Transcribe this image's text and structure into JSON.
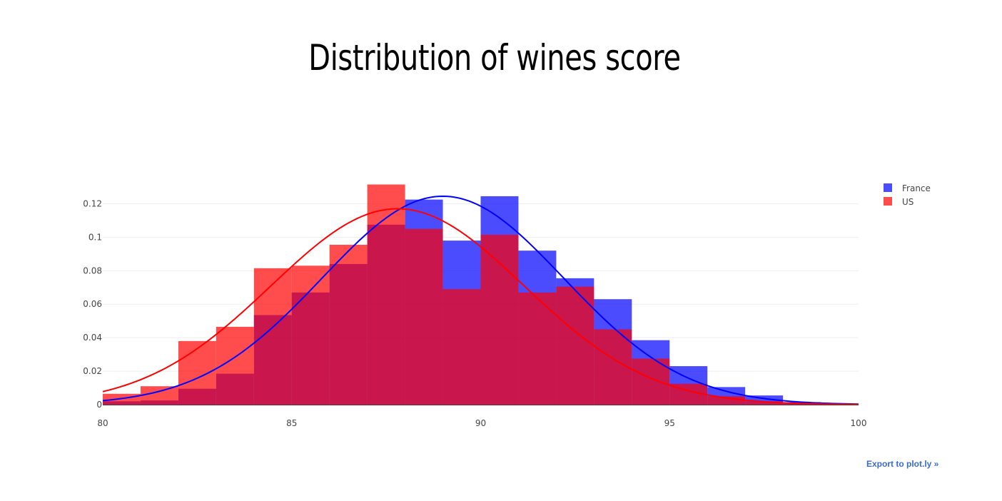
{
  "chart_data": {
    "type": "bar",
    "title": "Distribution of wines score",
    "xlabel": "",
    "ylabel": "",
    "xlim": [
      80,
      100
    ],
    "ylim": [
      0,
      0.133
    ],
    "x_ticks": [
      80,
      85,
      90,
      95,
      100
    ],
    "y_ticks": [
      0,
      0.02,
      0.04,
      0.06,
      0.08,
      0.1,
      0.12
    ],
    "y_tick_labels": [
      "0",
      "0.02",
      "0.04",
      "0.06",
      "0.08",
      "0.1",
      "0.12"
    ],
    "grid": true,
    "legend_position": "top-right",
    "bin_edges": [
      80,
      81,
      82,
      83,
      84,
      85,
      86,
      87,
      88,
      89,
      90,
      91,
      92,
      93,
      94,
      95,
      96,
      97,
      98,
      99,
      100
    ],
    "series": [
      {
        "name": "France",
        "color": "#0000ff",
        "values": [
          0.002,
          0.0025,
          0.0095,
          0.0185,
          0.0535,
          0.067,
          0.084,
          0.1075,
          0.1225,
          0.098,
          0.1245,
          0.092,
          0.0755,
          0.063,
          0.0385,
          0.023,
          0.0105,
          0.0055,
          0.0015,
          0.0005
        ],
        "curve_mean": 89.0,
        "curve_peak": 0.1245,
        "curve_sigma": 3.2
      },
      {
        "name": "US",
        "color": "#ff0000",
        "values": [
          0.0065,
          0.011,
          0.038,
          0.0465,
          0.0815,
          0.083,
          0.0955,
          0.1315,
          0.105,
          0.069,
          0.1015,
          0.067,
          0.0705,
          0.045,
          0.0275,
          0.0125,
          0.005,
          0.002,
          0.0005,
          0.0002
        ],
        "curve_mean": 87.8,
        "curve_peak": 0.117,
        "curve_sigma": 3.35
      }
    ]
  },
  "legend": {
    "items": [
      {
        "label": "France",
        "color": "#0000ff"
      },
      {
        "label": "US",
        "color": "#ff0000"
      }
    ]
  },
  "export_label": "Export to plot.ly »"
}
